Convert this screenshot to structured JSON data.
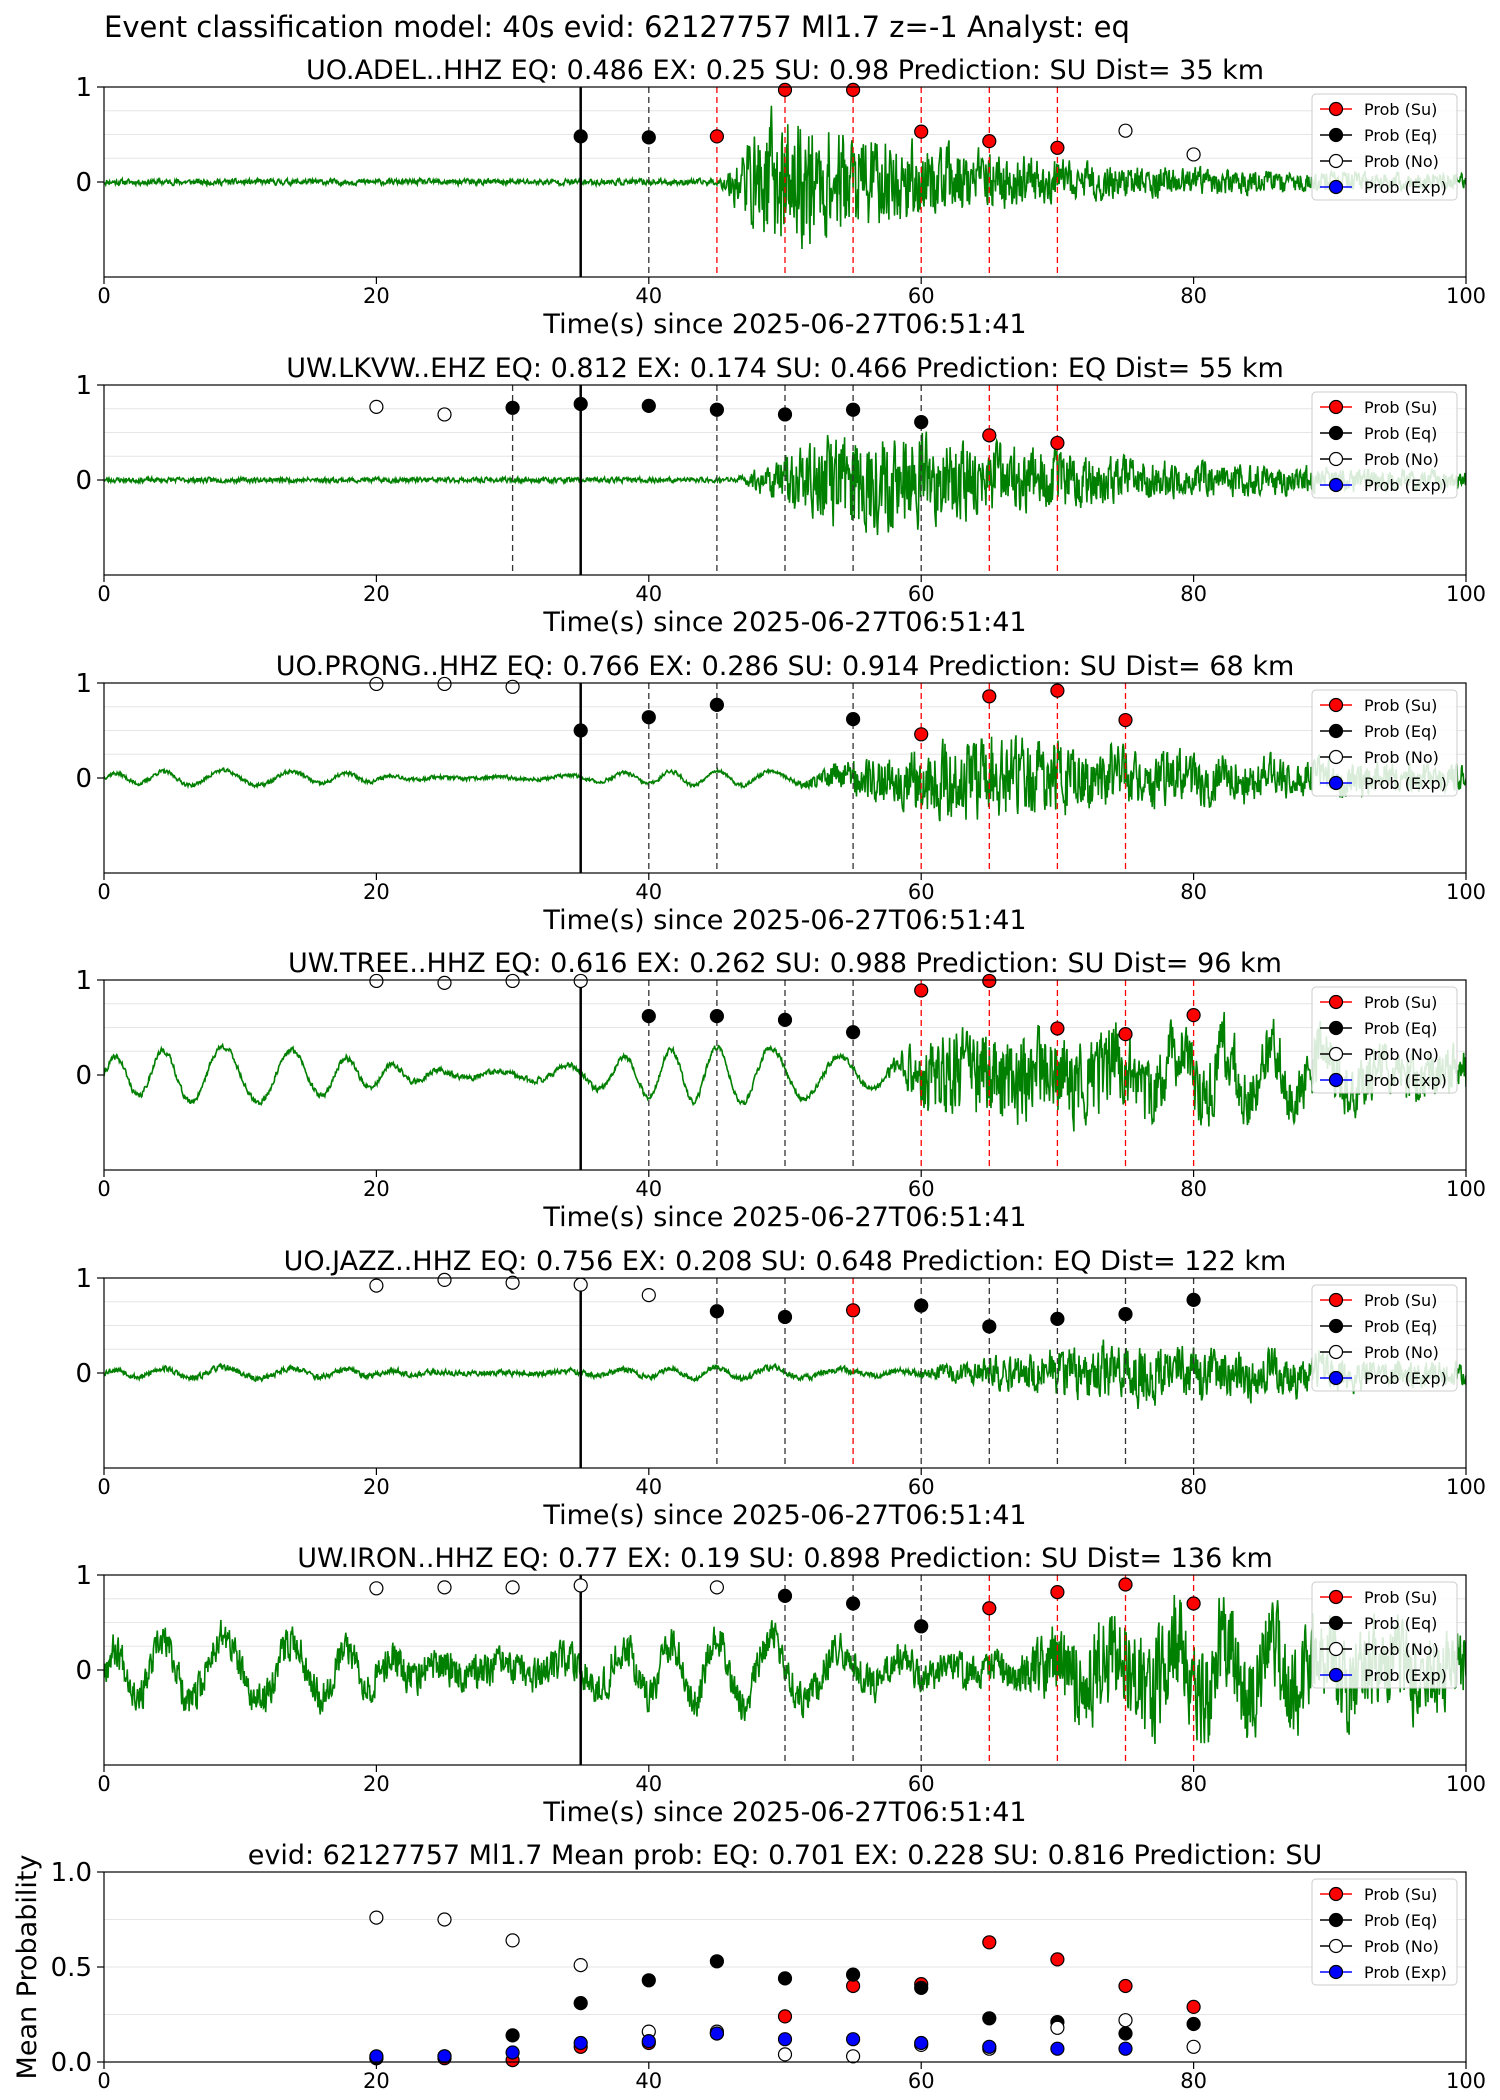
{
  "suptitle": "Event classification model: 40s evid: 62127757 Ml1.7 z=-1 Analyst: eq",
  "xaxis_label": "Time(s) since 2025-06-27T06:51:41",
  "legend": {
    "su": "Prob (Su)",
    "eq": "Prob (Eq)",
    "no": "Prob (No)",
    "exp": "Prob (Exp)"
  },
  "colors": {
    "waveform": "#008000",
    "su": "#ff0000",
    "eq": "#000000",
    "no": "#ffffff",
    "exp": "#0000ff"
  },
  "chart_data": [
    {
      "type": "scatter",
      "title": "UO.ADEL..HHZ   EQ: 0.486  EX: 0.25  SU: 0.98   Prediction: SU    Dist= 35 km",
      "xlim": [
        0,
        100
      ],
      "ylim": [
        -1,
        1
      ],
      "xticks": [
        0,
        20,
        40,
        60,
        80,
        100
      ],
      "yticks": [
        0,
        1
      ],
      "waveform": {
        "amp_pre": 0.03,
        "amp_post": 0.7,
        "onset": 45,
        "peak": 49,
        "decay": 14,
        "floor": 0.1,
        "swell": 0,
        "seed": 11
      },
      "arrival_time": 35,
      "windows": [
        {
          "x": 40,
          "pred": "eq"
        },
        {
          "x": 45,
          "pred": "su"
        },
        {
          "x": 50,
          "pred": "su"
        },
        {
          "x": 55,
          "pred": "su"
        },
        {
          "x": 60,
          "pred": "su"
        },
        {
          "x": 65,
          "pred": "su"
        },
        {
          "x": 70,
          "pred": "su"
        }
      ],
      "series": [
        {
          "name": "Prob (Su)",
          "key": "su",
          "points": [
            [
              45,
              0.48
            ],
            [
              50,
              0.97
            ],
            [
              55,
              0.97
            ],
            [
              60,
              0.53
            ],
            [
              65,
              0.43
            ],
            [
              70,
              0.36
            ]
          ]
        },
        {
          "name": "Prob (Eq)",
          "key": "eq",
          "points": [
            [
              35,
              0.48
            ],
            [
              40,
              0.47
            ]
          ]
        },
        {
          "name": "Prob (No)",
          "key": "no",
          "points": [
            [
              75,
              0.54
            ],
            [
              80,
              0.29
            ]
          ]
        }
      ]
    },
    {
      "type": "scatter",
      "title": "UW.LKVW..EHZ   EQ: 0.812  EX: 0.174  SU: 0.466   Prediction: EQ    Dist= 55 km",
      "xlim": [
        0,
        100
      ],
      "ylim": [
        -1,
        1
      ],
      "xticks": [
        0,
        20,
        40,
        60,
        80,
        100
      ],
      "yticks": [
        0,
        1
      ],
      "waveform": {
        "amp_pre": 0.025,
        "amp_post": 0.55,
        "onset": 46,
        "peak": 55,
        "decay": 18,
        "floor": 0.08,
        "swell": 0,
        "seed": 23
      },
      "arrival_time": 35,
      "windows": [
        {
          "x": 30,
          "pred": "eq"
        },
        {
          "x": 45,
          "pred": "eq"
        },
        {
          "x": 50,
          "pred": "eq"
        },
        {
          "x": 55,
          "pred": "eq"
        },
        {
          "x": 60,
          "pred": "eq"
        },
        {
          "x": 65,
          "pred": "su"
        },
        {
          "x": 70,
          "pred": "su"
        }
      ],
      "series": [
        {
          "name": "Prob (Su)",
          "key": "su",
          "points": [
            [
              65,
              0.47
            ],
            [
              70,
              0.39
            ]
          ]
        },
        {
          "name": "Prob (Eq)",
          "key": "eq",
          "points": [
            [
              30,
              0.76
            ],
            [
              35,
              0.8
            ],
            [
              40,
              0.78
            ],
            [
              45,
              0.74
            ],
            [
              50,
              0.69
            ],
            [
              55,
              0.74
            ],
            [
              60,
              0.61
            ]
          ]
        },
        {
          "name": "Prob (No)",
          "key": "no",
          "points": [
            [
              20,
              0.77
            ],
            [
              25,
              0.69
            ]
          ]
        }
      ]
    },
    {
      "type": "scatter",
      "title": "UO.PRONG..HHZ   EQ: 0.766  EX: 0.286  SU: 0.914   Prediction: SU    Dist= 68 km",
      "xlim": [
        0,
        100
      ],
      "ylim": [
        -1,
        1
      ],
      "xticks": [
        0,
        20,
        40,
        60,
        80,
        100
      ],
      "yticks": [
        0,
        1
      ],
      "waveform": {
        "amp_pre": 0.02,
        "amp_post": 0.45,
        "onset": 50,
        "peak": 63,
        "decay": 20,
        "floor": 0.1,
        "swell": 0.08,
        "seed": 37
      },
      "arrival_time": 35,
      "windows": [
        {
          "x": 40,
          "pred": "eq"
        },
        {
          "x": 45,
          "pred": "eq"
        },
        {
          "x": 55,
          "pred": "eq"
        },
        {
          "x": 60,
          "pred": "su"
        },
        {
          "x": 65,
          "pred": "su"
        },
        {
          "x": 70,
          "pred": "su"
        },
        {
          "x": 75,
          "pred": "su"
        }
      ],
      "series": [
        {
          "name": "Prob (Su)",
          "key": "su",
          "points": [
            [
              60,
              0.46
            ],
            [
              65,
              0.86
            ],
            [
              70,
              0.92
            ],
            [
              75,
              0.61
            ]
          ]
        },
        {
          "name": "Prob (Eq)",
          "key": "eq",
          "points": [
            [
              35,
              0.5
            ],
            [
              40,
              0.64
            ],
            [
              45,
              0.77
            ],
            [
              55,
              0.62
            ]
          ]
        },
        {
          "name": "Prob (No)",
          "key": "no",
          "points": [
            [
              20,
              0.99
            ],
            [
              25,
              0.99
            ],
            [
              30,
              0.96
            ]
          ]
        }
      ]
    },
    {
      "type": "scatter",
      "title": "UW.TREE..HHZ   EQ: 0.616  EX: 0.262  SU: 0.988   Prediction: SU    Dist= 96 km",
      "xlim": [
        0,
        100
      ],
      "ylim": [
        -1,
        1
      ],
      "xticks": [
        0,
        20,
        40,
        60,
        80,
        100
      ],
      "yticks": [
        0,
        1
      ],
      "waveform": {
        "amp_pre": 0.03,
        "amp_post": 0.42,
        "onset": 57,
        "peak": 61,
        "decay": 30,
        "floor": 0.2,
        "swell": 0.3,
        "seed": 41
      },
      "arrival_time": 35,
      "windows": [
        {
          "x": 40,
          "pred": "eq"
        },
        {
          "x": 45,
          "pred": "eq"
        },
        {
          "x": 50,
          "pred": "eq"
        },
        {
          "x": 55,
          "pred": "eq"
        },
        {
          "x": 60,
          "pred": "su"
        },
        {
          "x": 65,
          "pred": "su"
        },
        {
          "x": 70,
          "pred": "su"
        },
        {
          "x": 75,
          "pred": "su"
        },
        {
          "x": 80,
          "pred": "su"
        }
      ],
      "series": [
        {
          "name": "Prob (Su)",
          "key": "su",
          "points": [
            [
              60,
              0.89
            ],
            [
              65,
              0.99
            ],
            [
              70,
              0.49
            ],
            [
              75,
              0.43
            ],
            [
              80,
              0.63
            ]
          ]
        },
        {
          "name": "Prob (Eq)",
          "key": "eq",
          "points": [
            [
              40,
              0.62
            ],
            [
              45,
              0.62
            ],
            [
              50,
              0.58
            ],
            [
              55,
              0.45
            ]
          ]
        },
        {
          "name": "Prob (No)",
          "key": "no",
          "points": [
            [
              20,
              0.99
            ],
            [
              25,
              0.97
            ],
            [
              30,
              0.99
            ],
            [
              35,
              0.99
            ]
          ]
        }
      ]
    },
    {
      "type": "scatter",
      "title": "UO.JAZZ..HHZ   EQ: 0.756  EX: 0.208  SU: 0.648   Prediction: EQ    Dist= 122 km",
      "xlim": [
        0,
        100
      ],
      "ylim": [
        -1,
        1
      ],
      "xticks": [
        0,
        20,
        40,
        60,
        80,
        100
      ],
      "yticks": [
        0,
        1
      ],
      "waveform": {
        "amp_pre": 0.03,
        "amp_post": 0.32,
        "onset": 57,
        "peak": 75,
        "decay": 16,
        "floor": 0.08,
        "swell": 0.06,
        "seed": 53
      },
      "arrival_time": 35,
      "windows": [
        {
          "x": 45,
          "pred": "eq"
        },
        {
          "x": 50,
          "pred": "eq"
        },
        {
          "x": 55,
          "pred": "su"
        },
        {
          "x": 60,
          "pred": "eq"
        },
        {
          "x": 65,
          "pred": "eq"
        },
        {
          "x": 70,
          "pred": "eq"
        },
        {
          "x": 75,
          "pred": "eq"
        },
        {
          "x": 80,
          "pred": "eq"
        }
      ],
      "series": [
        {
          "name": "Prob (Su)",
          "key": "su",
          "points": [
            [
              55,
              0.66
            ]
          ]
        },
        {
          "name": "Prob (Eq)",
          "key": "eq",
          "points": [
            [
              45,
              0.65
            ],
            [
              50,
              0.59
            ],
            [
              60,
              0.71
            ],
            [
              65,
              0.49
            ],
            [
              70,
              0.57
            ],
            [
              75,
              0.62
            ],
            [
              80,
              0.77
            ]
          ]
        },
        {
          "name": "Prob (No)",
          "key": "no",
          "points": [
            [
              20,
              0.92
            ],
            [
              25,
              0.98
            ],
            [
              30,
              0.95
            ],
            [
              35,
              0.93
            ],
            [
              40,
              0.82
            ]
          ]
        }
      ]
    },
    {
      "type": "scatter",
      "title": "UW.IRON..HHZ   EQ: 0.77  EX: 0.19  SU: 0.898   Prediction: SU    Dist= 136 km",
      "xlim": [
        0,
        100
      ],
      "ylim": [
        -1,
        1
      ],
      "xticks": [
        0,
        20,
        40,
        60,
        80,
        100
      ],
      "yticks": [
        0,
        1
      ],
      "waveform": {
        "amp_pre": 0.18,
        "amp_post": 0.42,
        "onset": 65,
        "peak": 70,
        "decay": 40,
        "floor": 0.35,
        "swell": 0.35,
        "seed": 67
      },
      "arrival_time": 35,
      "windows": [
        {
          "x": 50,
          "pred": "eq"
        },
        {
          "x": 55,
          "pred": "eq"
        },
        {
          "x": 60,
          "pred": "eq"
        },
        {
          "x": 65,
          "pred": "su"
        },
        {
          "x": 70,
          "pred": "su"
        },
        {
          "x": 75,
          "pred": "su"
        },
        {
          "x": 80,
          "pred": "su"
        }
      ],
      "series": [
        {
          "name": "Prob (Su)",
          "key": "su",
          "points": [
            [
              65,
              0.65
            ],
            [
              70,
              0.82
            ],
            [
              75,
              0.9
            ],
            [
              80,
              0.7
            ]
          ]
        },
        {
          "name": "Prob (Eq)",
          "key": "eq",
          "points": [
            [
              50,
              0.78
            ],
            [
              55,
              0.7
            ],
            [
              60,
              0.46
            ]
          ]
        },
        {
          "name": "Prob (No)",
          "key": "no",
          "points": [
            [
              20,
              0.86
            ],
            [
              25,
              0.87
            ],
            [
              30,
              0.87
            ],
            [
              35,
              0.89
            ],
            [
              45,
              0.87
            ]
          ]
        }
      ]
    },
    {
      "type": "scatter",
      "title": "evid: 62127757  Ml1.7   Mean prob:   EQ: 0.701  EX: 0.228  SU: 0.816   Prediction: SU",
      "ylabel": "Mean Probability",
      "xlim": [
        0,
        100
      ],
      "ylim": [
        0,
        1
      ],
      "xticks": [
        0,
        20,
        40,
        60,
        80,
        100
      ],
      "yticks": [
        0.0,
        0.5,
        1.0
      ],
      "ytick_labels": [
        "0.0",
        "0.5",
        "1.0"
      ],
      "series": [
        {
          "name": "Prob (Su)",
          "key": "su",
          "points": [
            [
              20,
              0.02
            ],
            [
              25,
              0.02
            ],
            [
              30,
              0.01
            ],
            [
              35,
              0.08
            ],
            [
              40,
              0.1
            ],
            [
              45,
              0.15
            ],
            [
              50,
              0.24
            ],
            [
              55,
              0.4
            ],
            [
              60,
              0.41
            ],
            [
              65,
              0.63
            ],
            [
              70,
              0.54
            ],
            [
              75,
              0.4
            ],
            [
              80,
              0.29
            ]
          ]
        },
        {
          "name": "Prob (Eq)",
          "key": "eq",
          "points": [
            [
              20,
              0.02
            ],
            [
              25,
              0.03
            ],
            [
              30,
              0.14
            ],
            [
              35,
              0.31
            ],
            [
              40,
              0.43
            ],
            [
              45,
              0.53
            ],
            [
              50,
              0.44
            ],
            [
              55,
              0.46
            ],
            [
              60,
              0.39
            ],
            [
              65,
              0.23
            ],
            [
              70,
              0.21
            ],
            [
              75,
              0.15
            ],
            [
              80,
              0.2
            ]
          ]
        },
        {
          "name": "Prob (No)",
          "key": "no",
          "points": [
            [
              20,
              0.76
            ],
            [
              25,
              0.75
            ],
            [
              30,
              0.64
            ],
            [
              35,
              0.51
            ],
            [
              40,
              0.16
            ],
            [
              45,
              0.16
            ],
            [
              50,
              0.04
            ],
            [
              55,
              0.03
            ],
            [
              60,
              0.09
            ],
            [
              65,
              0.07
            ],
            [
              70,
              0.18
            ],
            [
              75,
              0.22
            ],
            [
              80,
              0.08
            ]
          ]
        },
        {
          "name": "Prob (Exp)",
          "key": "exp",
          "points": [
            [
              20,
              0.03
            ],
            [
              25,
              0.03
            ],
            [
              30,
              0.05
            ],
            [
              35,
              0.1
            ],
            [
              40,
              0.11
            ],
            [
              45,
              0.15
            ],
            [
              50,
              0.12
            ],
            [
              55,
              0.12
            ],
            [
              60,
              0.1
            ],
            [
              65,
              0.08
            ],
            [
              70,
              0.07
            ],
            [
              75,
              0.07
            ]
          ]
        }
      ]
    }
  ]
}
